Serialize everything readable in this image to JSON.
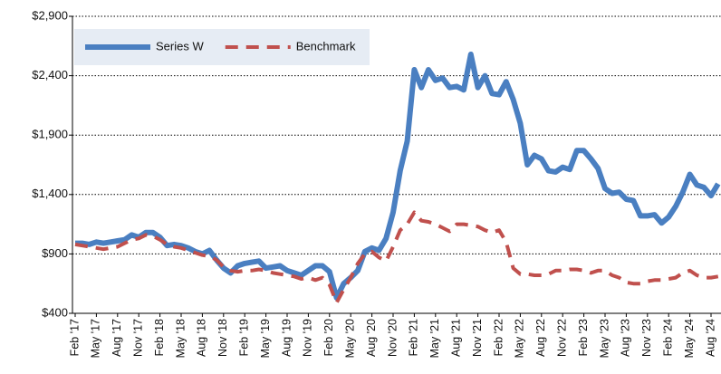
{
  "chart_data": {
    "type": "line",
    "categories": [
      "Feb '17",
      null,
      null,
      "May '17",
      null,
      null,
      "Aug '17",
      null,
      null,
      "Nov '17",
      null,
      null,
      "Feb '18",
      null,
      null,
      "May '18",
      null,
      null,
      "Aug '18",
      null,
      null,
      "Nov '18",
      null,
      null,
      "Feb '19",
      null,
      null,
      "May '19",
      null,
      null,
      "Aug '19",
      null,
      null,
      "Nov '19",
      null,
      null,
      "Feb '20",
      null,
      null,
      "May '20",
      null,
      null,
      "Aug '20",
      null,
      null,
      "Nov '20",
      null,
      null,
      "Feb '21",
      null,
      null,
      "May '21",
      null,
      null,
      "Aug '21",
      null,
      null,
      "Nov '21",
      null,
      null,
      "Feb '22",
      null,
      null,
      "May '22",
      null,
      null,
      "Aug '22",
      null,
      null,
      "Nov '22",
      null,
      null,
      "Feb '23",
      null,
      null,
      "May '23",
      null,
      null,
      "Aug '23",
      null,
      null,
      "Nov '23",
      null,
      null,
      "Feb '24",
      null,
      null,
      "May '24",
      null,
      null,
      "Aug '24",
      null
    ],
    "series": [
      {
        "name": "Series W",
        "color": "#4a7fc1",
        "style": "solid",
        "values": [
          990,
          990,
          980,
          1000,
          990,
          1000,
          1010,
          1020,
          1060,
          1040,
          1080,
          1080,
          1040,
          970,
          980,
          970,
          950,
          920,
          900,
          930,
          850,
          780,
          740,
          800,
          820,
          830,
          840,
          780,
          790,
          800,
          760,
          740,
          720,
          760,
          800,
          800,
          750,
          530,
          650,
          700,
          760,
          920,
          950,
          930,
          1030,
          1250,
          1600,
          1850,
          2450,
          2300,
          2450,
          2360,
          2380,
          2300,
          2310,
          2280,
          2580,
          2300,
          2400,
          2250,
          2240,
          2350,
          2200,
          2000,
          1650,
          1730,
          1700,
          1600,
          1590,
          1630,
          1610,
          1770,
          1770,
          1700,
          1620,
          1450,
          1410,
          1420,
          1360,
          1350,
          1220,
          1220,
          1230,
          1160,
          1210,
          1300,
          1420,
          1570,
          1480,
          1460,
          1390,
          1490
        ]
      },
      {
        "name": "Benchmark",
        "color": "#c0504d",
        "style": "dashed",
        "values": [
          980,
          970,
          960,
          950,
          940,
          950,
          960,
          990,
          1020,
          1030,
          1060,
          1050,
          1020,
          980,
          960,
          950,
          930,
          910,
          890,
          880,
          850,
          790,
          760,
          750,
          760,
          760,
          770,
          760,
          740,
          730,
          720,
          710,
          690,
          700,
          680,
          700,
          640,
          490,
          600,
          700,
          820,
          900,
          920,
          870,
          840,
          960,
          1100,
          1150,
          1250,
          1180,
          1170,
          1150,
          1120,
          1090,
          1150,
          1150,
          1140,
          1130,
          1100,
          1080,
          1100,
          1000,
          780,
          730,
          730,
          720,
          720,
          730,
          760,
          760,
          770,
          770,
          760,
          740,
          760,
          760,
          720,
          700,
          660,
          650,
          650,
          670,
          680,
          680,
          690,
          700,
          740,
          760,
          720,
          700,
          700,
          710
        ]
      }
    ],
    "ylim": [
      400,
      2900
    ],
    "yticks": [
      {
        "value": 400,
        "label": "$400"
      },
      {
        "value": 900,
        "label": "$900"
      },
      {
        "value": 1400,
        "label": "$1,400"
      },
      {
        "value": 1900,
        "label": "$1,900"
      },
      {
        "value": 2400,
        "label": "$2,400"
      },
      {
        "value": 2900,
        "label": "$2,900"
      }
    ],
    "grid": true,
    "legend": "upper-left"
  }
}
